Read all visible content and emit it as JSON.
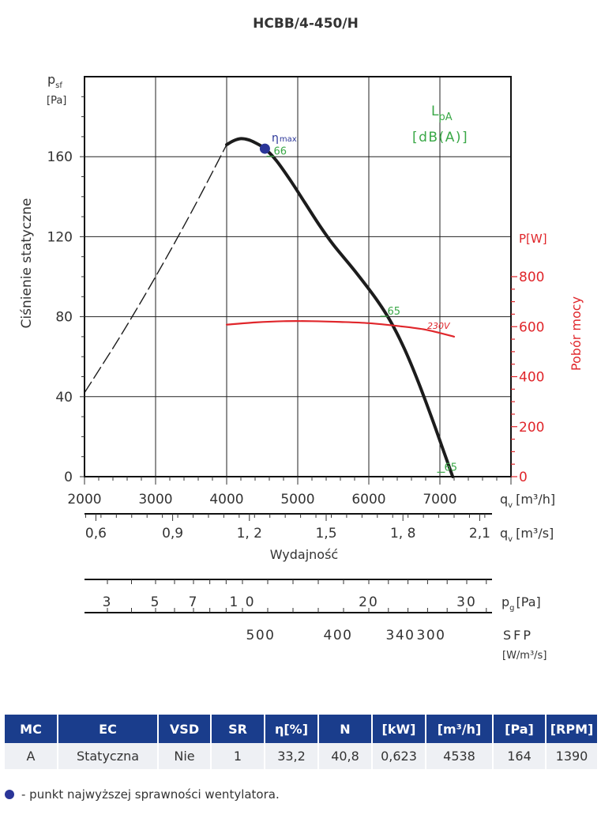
{
  "chart_data": {
    "type": "line",
    "title": "HCBB/4-450/H",
    "ylabel": "Ciśnienie statyczne",
    "ylabel_symbol": "p",
    "ylabel_symbol_sub": "sf",
    "ylabel_unit": "[Pa]",
    "xlabel": "Wydajność",
    "xlim": [
      2000,
      8000
    ],
    "ylim": [
      0,
      200
    ],
    "grid": true,
    "x_ticks": [
      "2000",
      "3000",
      "4000",
      "5000",
      "6000",
      "7000"
    ],
    "x_tick_values": [
      2000,
      3000,
      4000,
      5000,
      6000,
      7000
    ],
    "x_unit_label": "q",
    "x_unit_sub": "v",
    "x_unit": "[m³/h]",
    "y_ticks": [
      "0",
      "40",
      "80",
      "120",
      "160"
    ],
    "y_tick_values": [
      0,
      40,
      80,
      120,
      160
    ],
    "x2_ticks": [
      "0,6",
      "0,9",
      "1, 2",
      "1,5",
      "1, 8",
      "2,1"
    ],
    "x2_tick_values": [
      0.6,
      0.9,
      1.2,
      1.5,
      1.8,
      2.1
    ],
    "x2_unit_label": "q",
    "x2_unit_sub": "v",
    "x2_unit": "[m³/s]",
    "y2_label": "Pobór mocy",
    "y2_unit_label": "P[W]",
    "y2_ticks": [
      "0",
      "200",
      "400",
      "600",
      "800"
    ],
    "y2_tick_values": [
      0,
      200,
      400,
      600,
      800
    ],
    "y2_lim": [
      0,
      800
    ],
    "lpa_label": "L",
    "lpa_sub": "pA",
    "lpa_unit": "[dB(A)]",
    "series": [
      {
        "name": "Ciśnienie statyczne",
        "color": "#1c1c1c",
        "x": [
          4000,
          4100,
          4200,
          4300,
          4400,
          4538,
          4700,
          4900,
          5100,
          5300,
          5500,
          5800,
          6100,
          6300,
          6500,
          6700,
          6900,
          7050,
          7180
        ],
        "y": [
          166,
          168,
          169,
          168.5,
          167,
          164,
          158,
          148,
          137,
          126,
          116,
          103,
          89,
          78,
          64,
          47,
          28,
          13,
          0
        ]
      },
      {
        "name": "Ciśnienie statyczne (poza zakresem)",
        "color": "#1c1c1c",
        "dashed": true,
        "x": [
          2000,
          2500,
          3000,
          3500,
          4000
        ],
        "y": [
          42,
          70,
          100,
          132,
          166
        ]
      },
      {
        "name": "230V",
        "color": "#e0262b",
        "axis": "y2",
        "x": [
          4000,
          4400,
          4800,
          5200,
          5600,
          6000,
          6400,
          6800,
          7200
        ],
        "y": [
          608,
          617,
          622,
          622,
          619,
          614,
          603,
          588,
          560
        ]
      }
    ],
    "lpa_markers": [
      {
        "x": 4650,
        "y": 161,
        "label": "66"
      },
      {
        "x": 6250,
        "y": 81,
        "label": "65"
      },
      {
        "x": 7050,
        "y": 3,
        "label": "65"
      }
    ],
    "eta_max": {
      "x": 4538,
      "y": 164,
      "label": "η",
      "sub": "max"
    },
    "power_series_label": "230V",
    "pg_scale": {
      "label": "p",
      "label_sub": "g",
      "unit": "[Pa]",
      "ticks": [
        "3",
        "5",
        "7",
        "1 0",
        "20",
        "30"
      ],
      "tick_values": [
        3,
        5,
        7,
        10,
        20,
        30
      ]
    },
    "sfp_scale": {
      "label": "SFP",
      "unit": "[W/m³/s]",
      "ticks": [
        "500",
        "400",
        "340",
        "300"
      ],
      "tick_values": [
        500,
        400,
        340,
        300
      ]
    }
  },
  "table": {
    "headers": [
      "MC",
      "EC",
      "VSD",
      "SR",
      "η[%]",
      "N",
      "[kW]",
      "[m³/h]",
      "[Pa]",
      "[RPM]"
    ],
    "rows": [
      [
        "A",
        "Statyczna",
        "Nie",
        "1",
        "33,2",
        "40,8",
        "0,623",
        "4538",
        "164",
        "1390"
      ]
    ]
  },
  "legend_text": "- punkt najwyższej sprawności wentylatora.",
  "colors": {
    "header_blue": "#1a3d8c",
    "pressure_curve": "#1c1c1c",
    "power_curve": "#e0262b",
    "lpa_green": "#3aa847",
    "eta_dot": "#2a3598"
  }
}
